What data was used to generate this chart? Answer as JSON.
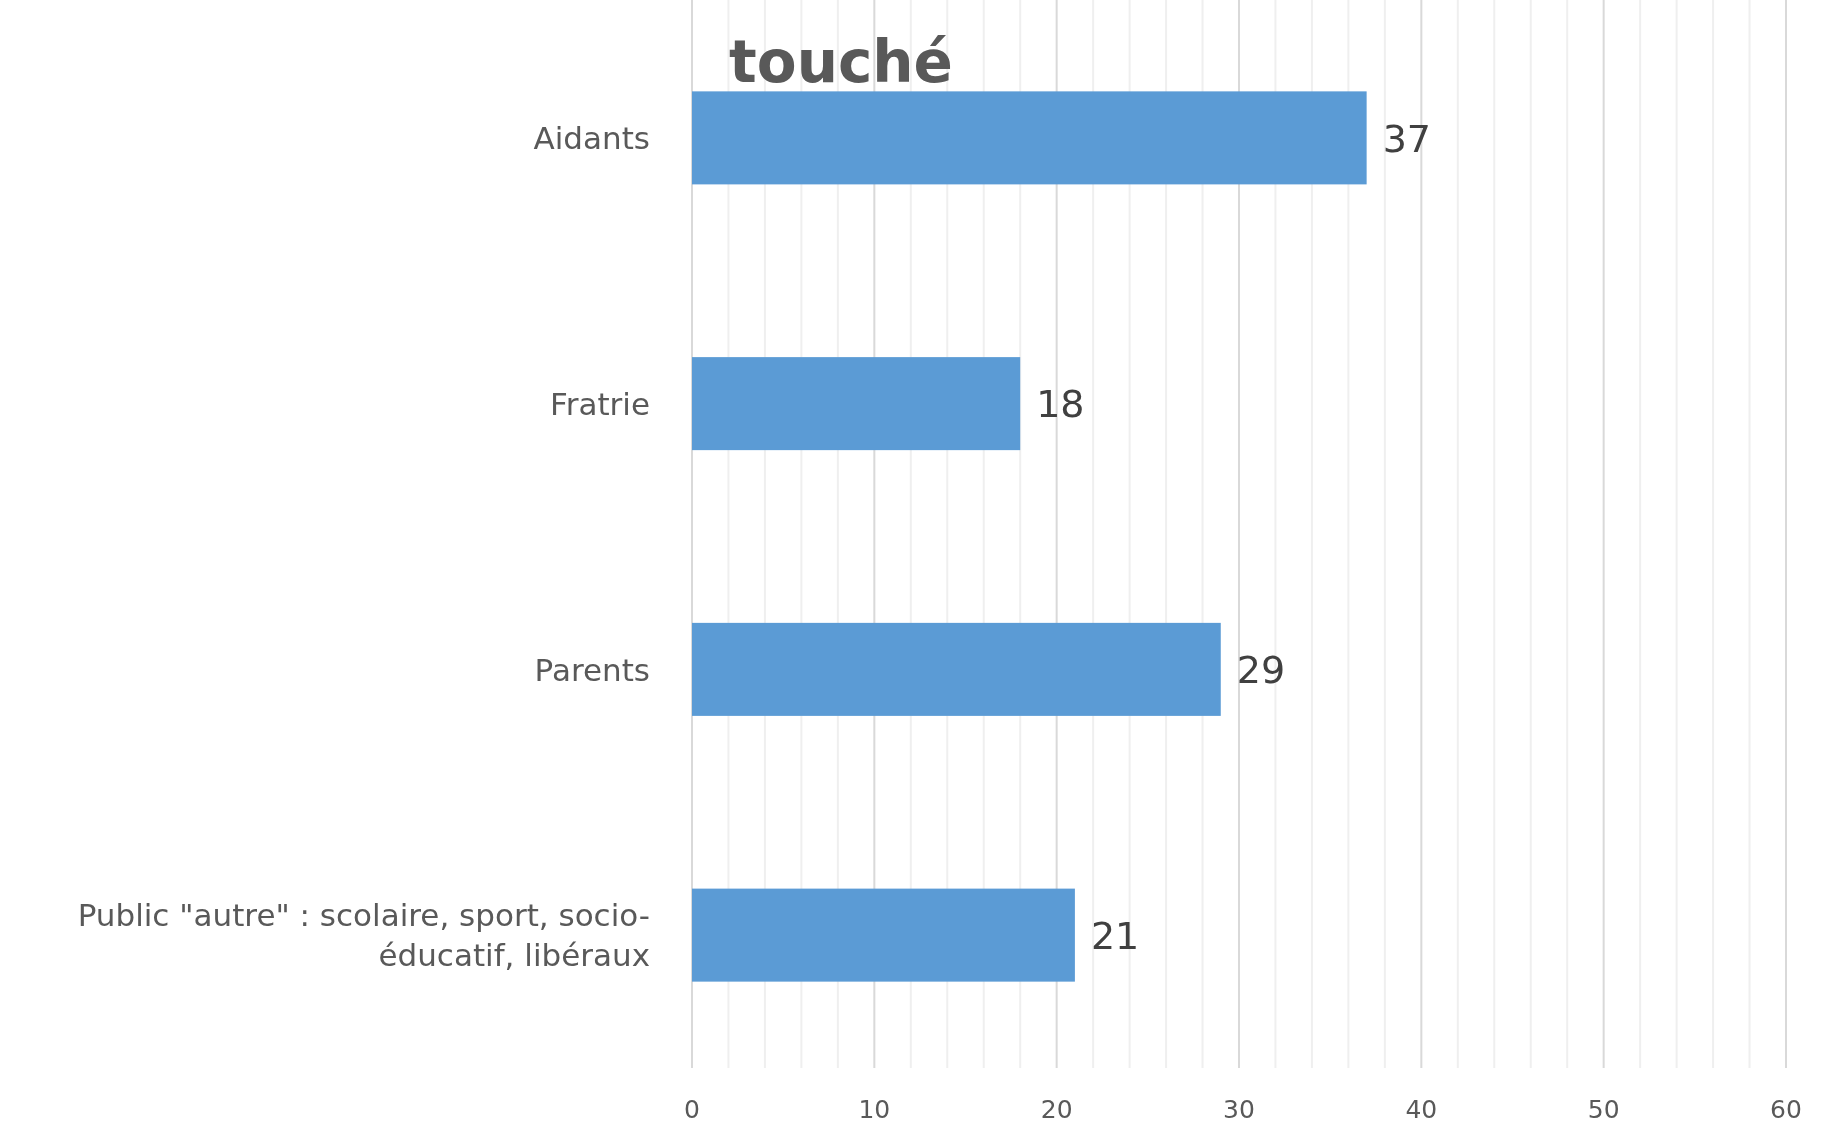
{
  "chart_data": {
    "type": "bar",
    "orientation": "horizontal",
    "title": "touché",
    "categories": [
      "Aidants",
      "Fratrie",
      "Parents",
      "Public \"autre\" : scolaire, sport, socio-éducatif, libéraux"
    ],
    "values": [
      37,
      18,
      29,
      21
    ],
    "color": "#5b9bd5",
    "data_labels": true,
    "xlim": [
      0,
      60
    ],
    "xticks": [
      0,
      {
        "value": 2,
        "label": null
      },
      {
        "value": 4,
        "label": null
      },
      {
        "value": 6,
        "label": null
      },
      {
        "value": 8,
        "label": null
      },
      10,
      {
        "value": 12,
        "label": null
      },
      {
        "value": 14,
        "label": null
      },
      {
        "value": 16,
        "label": null
      },
      {
        "value": 18,
        "label": null
      },
      20,
      {
        "value": 22,
        "label": null
      },
      {
        "value": 24,
        "label": null
      },
      {
        "value": 26,
        "label": null
      },
      {
        "value": 28,
        "label": null
      },
      30,
      {
        "value": 32,
        "label": null
      },
      {
        "value": 34,
        "label": null
      },
      {
        "value": 36,
        "label": null
      },
      {
        "value": 38,
        "label": null
      },
      40,
      {
        "value": 42,
        "label": null
      },
      {
        "value": 44,
        "label": null
      },
      {
        "value": 46,
        "label": null
      },
      {
        "value": 48,
        "label": null
      },
      50,
      {
        "value": 52,
        "label": null
      },
      {
        "value": 54,
        "label": null
      },
      {
        "value": 56,
        "label": null
      },
      {
        "value": 58,
        "label": null
      },
      60
    ],
    "grid": "x"
  }
}
